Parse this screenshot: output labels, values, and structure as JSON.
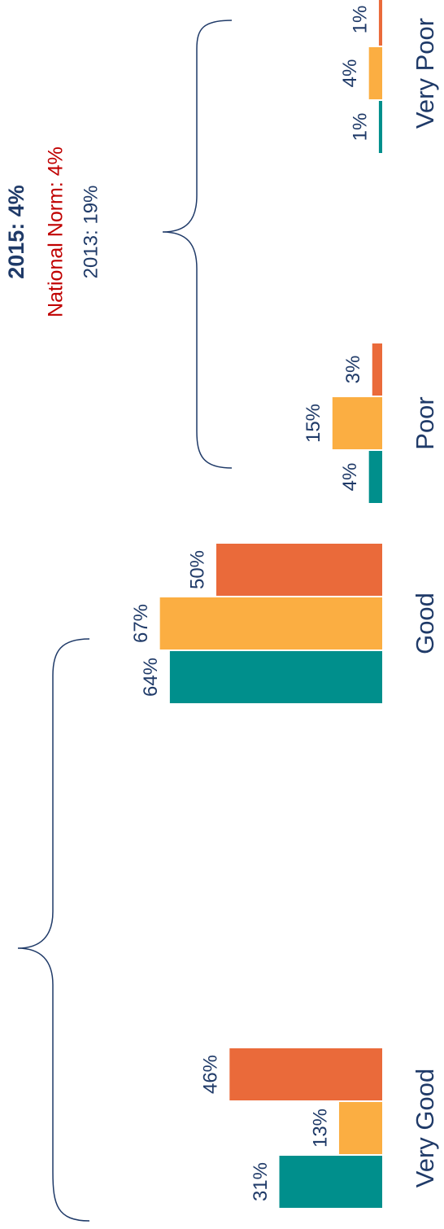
{
  "chart_data": {
    "type": "bar",
    "orientation": "horizontal",
    "categories": [
      "Very Good",
      "Good",
      "Poor",
      "Very Poor"
    ],
    "series": [
      {
        "color": "#008f8c",
        "values": [
          31,
          64,
          4,
          1
        ],
        "value_labels": [
          "31%",
          "64%",
          "4%",
          "1%"
        ]
      },
      {
        "color": "#fbae42",
        "values": [
          13,
          67,
          15,
          4
        ],
        "value_labels": [
          "13%",
          "67%",
          "15%",
          "4%"
        ]
      },
      {
        "color": "#ea6a3a",
        "values": [
          46,
          50,
          3,
          1
        ],
        "value_labels": [
          "46%",
          "50%",
          "3%",
          "1%"
        ]
      }
    ],
    "annotations": [
      "2015: 4%",
      "National Norm: 4%",
      "2013: 19%"
    ]
  }
}
